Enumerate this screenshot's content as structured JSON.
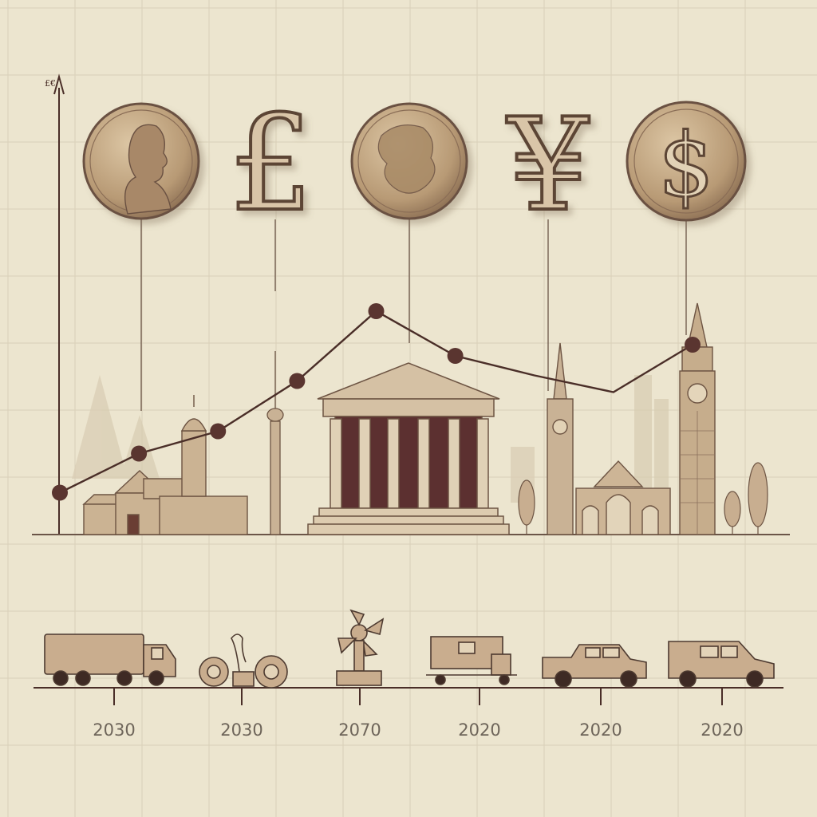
{
  "chart_data": {
    "type": "line",
    "title": "",
    "xlabel": "",
    "ylabel": "",
    "y_axis_top_label": "£€",
    "x": [
      0,
      1,
      2,
      3,
      4,
      5,
      6,
      7,
      8
    ],
    "values": [
      15,
      29,
      37,
      55,
      80,
      64,
      57,
      51,
      68
    ],
    "ylim": [
      0,
      100
    ],
    "grid": true,
    "legend": "none",
    "timeline_labels": [
      "2030",
      "2030",
      "2070",
      "2020",
      "2020",
      "2020"
    ]
  },
  "coins": [
    {
      "name": "portrait-coin",
      "glyph": ""
    },
    {
      "name": "pound-symbol",
      "glyph": "£"
    },
    {
      "name": "map-coin",
      "glyph": ""
    },
    {
      "name": "yen-symbol",
      "glyph": "¥"
    },
    {
      "name": "dollar-coin",
      "glyph": "$"
    }
  ],
  "colors": {
    "background": "#ece5cf",
    "ink": "#4a2e28",
    "marker": "#5a3530",
    "coin": "#c7ad8a",
    "building": "#cdb69a"
  },
  "icons": [
    "truck-icon",
    "machinery-icon",
    "windmill-icon",
    "factory-cart-icon",
    "pickup-car-icon",
    "van-icon"
  ]
}
